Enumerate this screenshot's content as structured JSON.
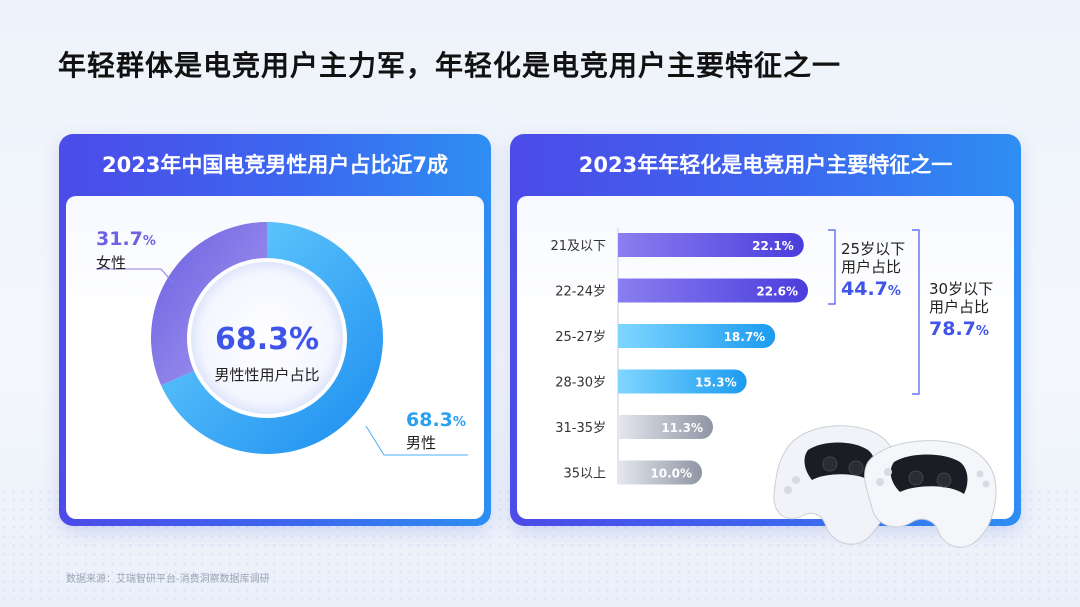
{
  "page_title": "年轻群体是电竞用户主力军，年轻化是电竞用户主要特征之一",
  "source": "数据来源：艾瑞智研平台-消费洞察数据库调研",
  "left_card": {
    "title": "2023年中国电竞男性用户占比近7成",
    "center_value": "68.3%",
    "center_label": "男性性用户占比",
    "female": {
      "value": "31.7",
      "unit": "%",
      "name": "女性"
    },
    "male": {
      "value": "68.3",
      "unit": "%",
      "name": "男性"
    }
  },
  "right_card": {
    "title": "2023年年轻化是电竞用户主要特征之一",
    "bracket_under25": {
      "line1": "25岁以下",
      "line2": "用户占比",
      "value": "44.7",
      "unit": "%"
    },
    "bracket_under30": {
      "line1": "30岁以下",
      "line2": "用户占比",
      "value": "78.7",
      "unit": "%"
    }
  },
  "chart_data": [
    {
      "type": "pie",
      "title": "2023年中国电竞男性用户占比近7成",
      "categories": [
        "男性",
        "女性"
      ],
      "values": [
        68.3,
        31.7
      ],
      "unit": "%"
    },
    {
      "type": "bar",
      "orientation": "horizontal",
      "title": "2023年年轻化是电竞用户主要特征之一",
      "categories": [
        "21及以下",
        "22-24岁",
        "25-27岁",
        "28-30岁",
        "31-35岁",
        "35以上"
      ],
      "values": [
        22.1,
        22.6,
        18.7,
        15.3,
        11.3,
        10.0
      ],
      "labels": [
        "22.1%",
        "22.6%",
        "18.7%",
        "15.3%",
        "11.3%",
        "10.0%"
      ],
      "unit": "%",
      "colors": [
        "#5b4fe0",
        "#5b4fe0",
        "#2aa7f2",
        "#2aa7f2",
        "#9aa0ad",
        "#9aa0ad"
      ]
    }
  ],
  "colors": {
    "male": "#2aa7f2",
    "female": "#7a6ce6",
    "accent": "#3f55e8"
  }
}
